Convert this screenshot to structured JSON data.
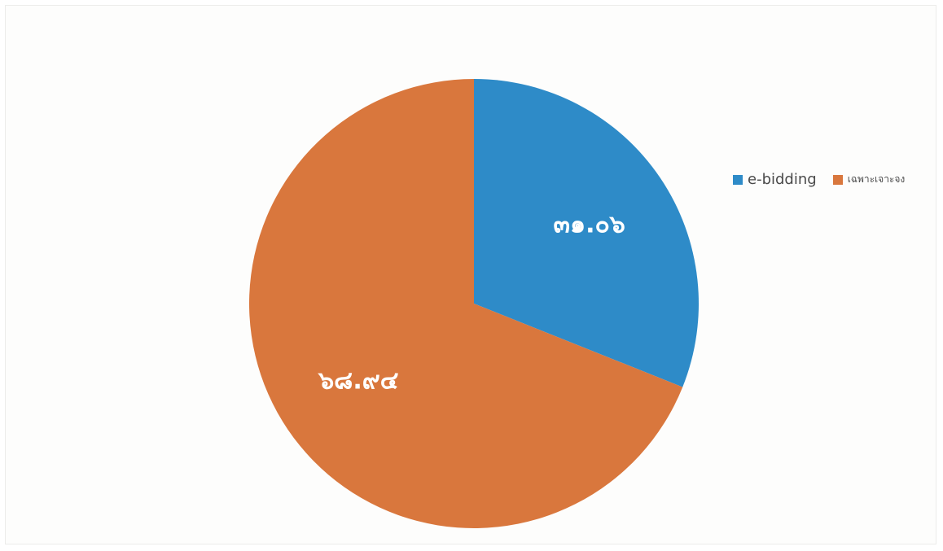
{
  "chart_data": {
    "type": "pie",
    "title": "",
    "categories": [
      "e-bidding",
      "เฉพาะเจาะจง"
    ],
    "values": [
      31.06,
      68.94
    ],
    "data_labels": [
      "๓๑.๐๖",
      "๖๘.๙๔"
    ],
    "colors": [
      "#2e8bc8",
      "#d9773d"
    ],
    "legend_position": "right",
    "start_angle_deg": 0,
    "direction": "clockwise"
  }
}
